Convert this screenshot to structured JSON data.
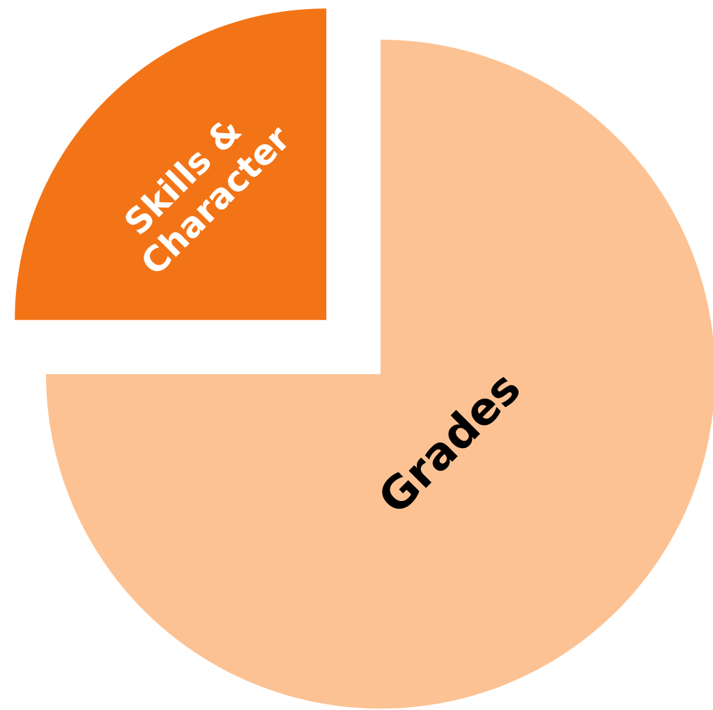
{
  "chart_data": {
    "type": "pie",
    "categories": [
      "Grades",
      "Skills & Character"
    ],
    "values": [
      75,
      25
    ],
    "colors": [
      "#fdc293",
      "#f37416"
    ],
    "label_colors": [
      "#000000",
      "#ffffff"
    ],
    "start_angle": 0,
    "direction": "clockwise",
    "exploded": [
      false,
      true
    ]
  }
}
